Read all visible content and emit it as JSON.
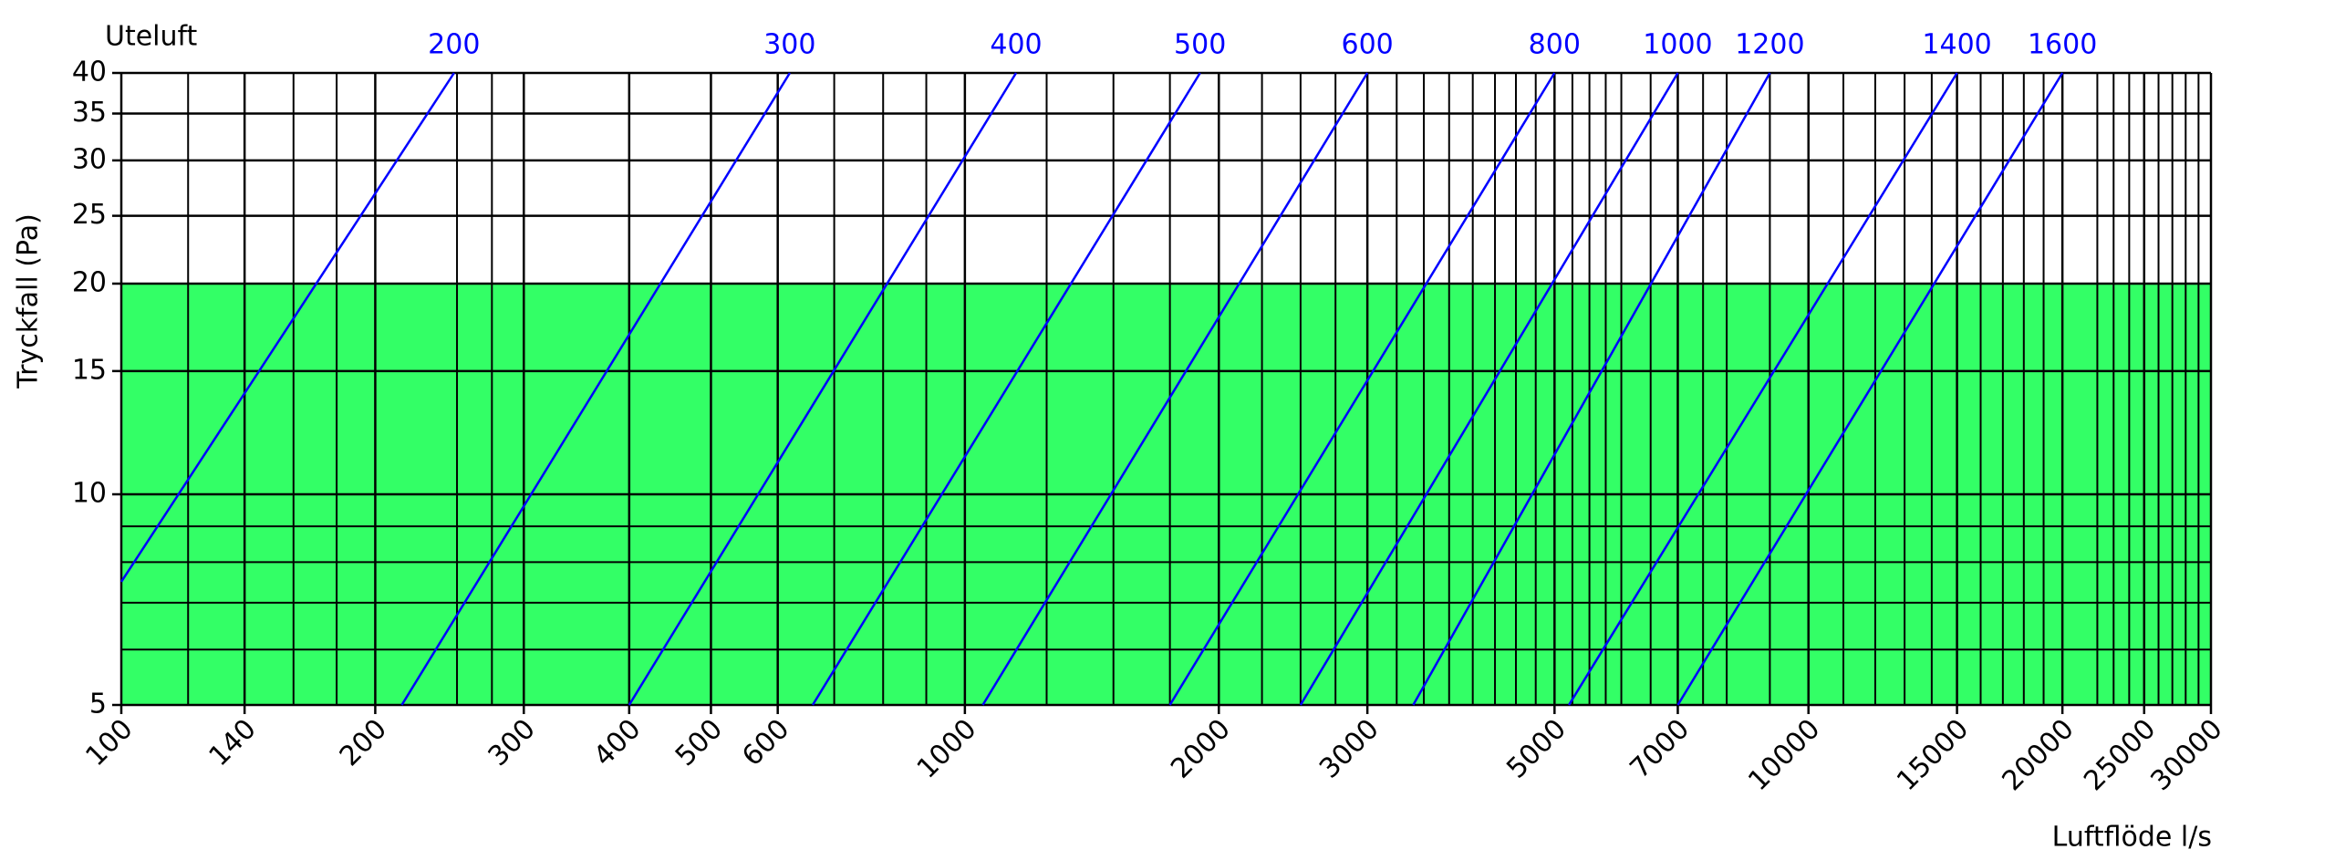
{
  "chart_data": {
    "type": "line",
    "title": "Uteluft",
    "ylabel": "Tryckfall (Pa)",
    "xlabel": "Luftflöde l/s",
    "xscale": "log",
    "yscale": "log",
    "xlim": [
      100,
      30000
    ],
    "ylim": [
      5,
      40
    ],
    "xticks": [
      100,
      140,
      200,
      300,
      400,
      500,
      600,
      1000,
      2000,
      3000,
      5000,
      7000,
      10000,
      15000,
      20000,
      25000,
      30000
    ],
    "yticks": [
      5,
      10,
      15,
      20,
      25,
      30,
      35,
      40
    ],
    "xgrid": [
      120,
      160,
      180,
      250,
      275,
      700,
      800,
      900,
      1250,
      1500,
      1750,
      2250,
      2500,
      2750,
      3250,
      3500,
      3750,
      4000,
      4250,
      4500,
      4750,
      5250,
      5500,
      5750,
      6000,
      6500,
      7500,
      8000,
      9000,
      11000,
      12000,
      13000,
      14000,
      16000,
      17000,
      18000,
      19000,
      22000,
      23000,
      24000,
      26000,
      27000,
      28000,
      29000
    ],
    "ygrid": [
      6,
      7,
      8,
      9
    ],
    "highlight": {
      "from": 5,
      "to": 20,
      "color": "#33ff66"
    },
    "grid_color": "#000000",
    "series": [
      {
        "name": "200",
        "color": "#0000ff",
        "x": [
          100,
          248
        ],
        "values": [
          7.5,
          40
        ]
      },
      {
        "name": "300",
        "color": "#0000ff",
        "x": [
          215,
          620
        ],
        "values": [
          5,
          40
        ]
      },
      {
        "name": "400",
        "color": "#0000ff",
        "x": [
          400,
          1150
        ],
        "values": [
          5,
          40
        ]
      },
      {
        "name": "500",
        "color": "#0000ff",
        "x": [
          660,
          1900
        ],
        "values": [
          5,
          40
        ]
      },
      {
        "name": "600",
        "color": "#0000ff",
        "x": [
          1050,
          3000
        ],
        "values": [
          5,
          40
        ]
      },
      {
        "name": "800",
        "color": "#0000ff",
        "x": [
          1750,
          5000
        ],
        "values": [
          5,
          40
        ]
      },
      {
        "name": "1000",
        "color": "#0000ff",
        "x": [
          2500,
          7000
        ],
        "values": [
          5,
          40
        ]
      },
      {
        "name": "1200",
        "color": "#0000ff",
        "x": [
          3400,
          9000
        ],
        "values": [
          5,
          40
        ]
      },
      {
        "name": "1400",
        "color": "#0000ff",
        "x": [
          5200,
          15000
        ],
        "values": [
          5,
          40
        ]
      },
      {
        "name": "1600",
        "color": "#0000ff",
        "x": [
          7000,
          20000
        ],
        "values": [
          5,
          40
        ]
      }
    ]
  }
}
